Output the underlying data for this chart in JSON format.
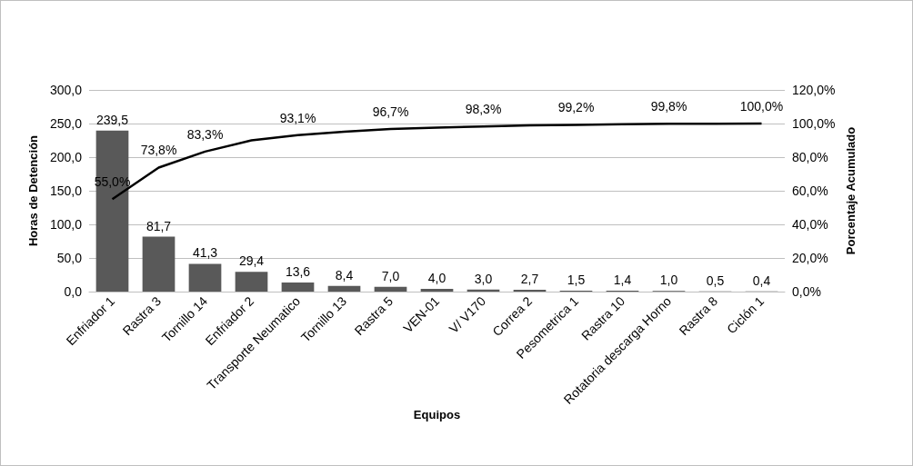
{
  "chart_data": {
    "type": "bar",
    "xlabel": "Equipos",
    "ylabel": "Horas de Detención",
    "y2label": "Porcentaje Acumulado",
    "categories": [
      "Enfriador 1",
      "Rastra 3",
      "Tornillo 14",
      "Enfriador 2",
      "Transporte Neumatico",
      "Tornillo 13",
      "Rastra 5",
      "VEN-01",
      "V/ V170",
      "Correa 2",
      "Pesometrica 1",
      "Rastra 10",
      "Rotatoria descarga Horno",
      "Rastra 8",
      "Ciclón 1"
    ],
    "series": [
      {
        "color": "#595959",
        "values": [
          239.5,
          81.7,
          41.3,
          29.4,
          13.6,
          8.4,
          7.0,
          4.0,
          3.0,
          2.7,
          1.5,
          1.4,
          1.0,
          0.5,
          0.4
        ],
        "value_labels": [
          "239,5",
          "81,7",
          "41,3",
          "29,4",
          "13,6",
          "8,4",
          "7,0",
          "4,0",
          "3,0",
          "2,7",
          "1,5",
          "1,4",
          "1,0",
          "0,5",
          "0,4"
        ]
      },
      {
        "type": "line",
        "axis": "y2",
        "color": "#000000",
        "values": [
          55.0,
          73.8,
          83.3,
          90.0,
          93.1,
          95.1,
          96.7,
          97.6,
          98.3,
          98.9,
          99.2,
          99.6,
          99.8,
          99.9,
          100.0
        ],
        "value_labels": [
          "55,0%",
          "73,8%",
          "83,3%",
          null,
          "93,1%",
          null,
          "96,7%",
          null,
          "98,3%",
          null,
          "99,2%",
          null,
          "99,8%",
          null,
          "100,0%"
        ]
      }
    ],
    "ylim": [
      0,
      300
    ],
    "yticks": [
      {
        "value": 0,
        "label": "0,0"
      },
      {
        "value": 50,
        "label": "50,0"
      },
      {
        "value": 100,
        "label": "100,0"
      },
      {
        "value": 150,
        "label": "150,0"
      },
      {
        "value": 200,
        "label": "200,0"
      },
      {
        "value": 250,
        "label": "250,0"
      },
      {
        "value": 300,
        "label": "300,0"
      }
    ],
    "y2lim": [
      0,
      120
    ],
    "y2ticks": [
      {
        "value": 0,
        "label": "0,0%"
      },
      {
        "value": 20,
        "label": "20,0%"
      },
      {
        "value": 40,
        "label": "40,0%"
      },
      {
        "value": 60,
        "label": "60,0%"
      },
      {
        "value": 80,
        "label": "80,0%"
      },
      {
        "value": 100,
        "label": "100,0%"
      },
      {
        "value": 120,
        "label": "120,0%"
      }
    ],
    "grid": "y",
    "marker": "none",
    "line_style": "solid"
  }
}
